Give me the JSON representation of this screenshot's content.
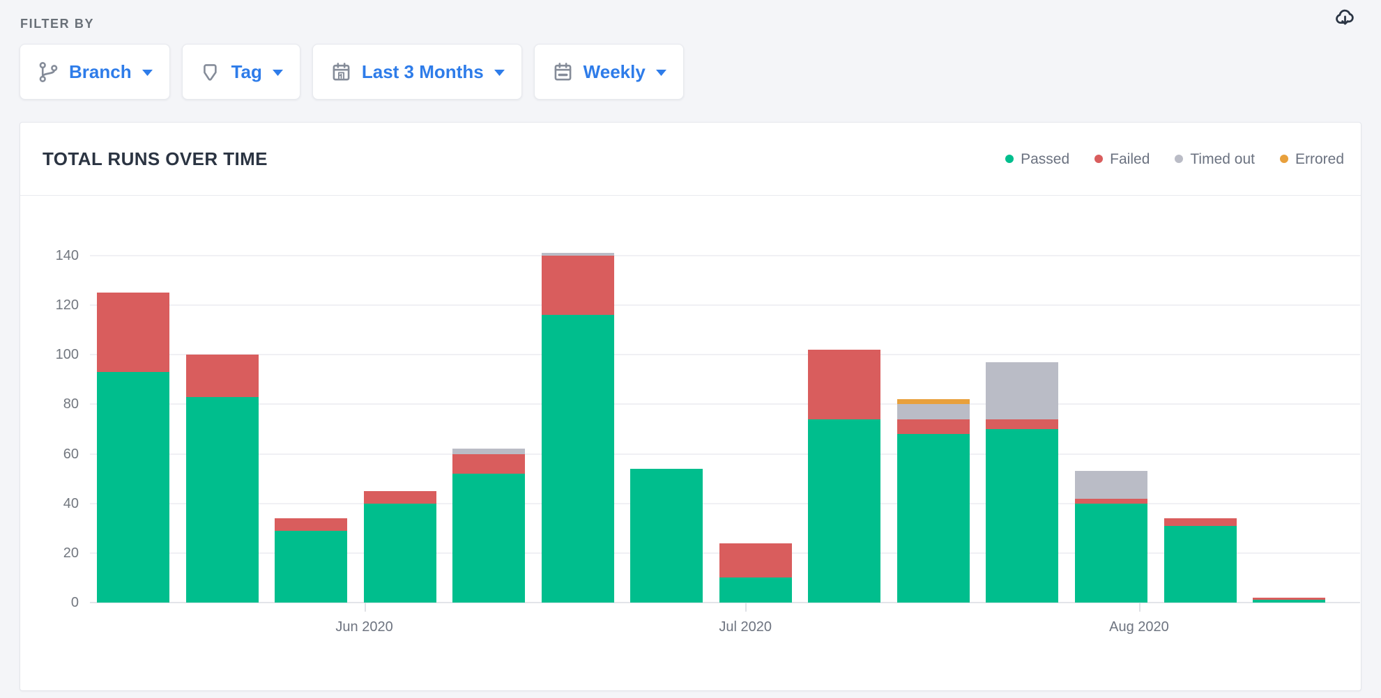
{
  "filter_bar": {
    "label": "FILTER BY",
    "buttons": [
      {
        "id": "branch",
        "label": "Branch",
        "icon": "git-branch-icon"
      },
      {
        "id": "tag",
        "label": "Tag",
        "icon": "tag-icon"
      },
      {
        "id": "date-range",
        "label": "Last 3 Months",
        "icon": "calendar-date-icon"
      },
      {
        "id": "interval",
        "label": "Weekly",
        "icon": "calendar-week-icon"
      }
    ]
  },
  "toolbar": {
    "download_icon": "cloud-download-icon"
  },
  "card": {
    "title": "TOTAL RUNS OVER TIME"
  },
  "legend": [
    {
      "label": "Passed",
      "color": "#00BE8D"
    },
    {
      "label": "Failed",
      "color": "#D95D5D"
    },
    {
      "label": "Timed out",
      "color": "#BABCC6"
    },
    {
      "label": "Errored",
      "color": "#E8A03C"
    }
  ],
  "chart_data": {
    "type": "bar",
    "stacked": true,
    "title": "TOTAL RUNS OVER TIME",
    "xlabel": "",
    "ylabel": "",
    "interval": "Weekly",
    "bar_count": 14,
    "series": [
      {
        "name": "Passed",
        "color": "#00BE8D",
        "values": [
          93,
          83,
          29,
          40,
          52,
          116,
          54,
          10,
          74,
          68,
          70,
          40,
          31,
          1
        ]
      },
      {
        "name": "Failed",
        "color": "#D95D5D",
        "values": [
          32,
          17,
          5,
          5,
          8,
          24,
          0,
          14,
          28,
          6,
          4,
          2,
          3,
          1
        ]
      },
      {
        "name": "Timed out",
        "color": "#BABCC6",
        "values": [
          0,
          0,
          0,
          0,
          2,
          1,
          0,
          0,
          0,
          6,
          23,
          11,
          0,
          0
        ]
      },
      {
        "name": "Errored",
        "color": "#E8A03C",
        "values": [
          0,
          0,
          0,
          0,
          0,
          0,
          0,
          0,
          0,
          2,
          0,
          0,
          0,
          0
        ]
      }
    ],
    "stack_totals": [
      125,
      100,
      34,
      45,
      62,
      141,
      54,
      24,
      102,
      82,
      97,
      53,
      34,
      2
    ],
    "y_ticks": [
      0,
      20,
      40,
      60,
      80,
      100,
      120,
      140
    ],
    "ylim": [
      0,
      147
    ],
    "grid": true,
    "legend_position": "top-right",
    "x_ticks": [
      {
        "label": "Jun 2020",
        "position_pct": 21.6
      },
      {
        "label": "Jul 2020",
        "position_pct": 51.6
      },
      {
        "label": "Aug 2020",
        "position_pct": 82.6
      }
    ]
  }
}
